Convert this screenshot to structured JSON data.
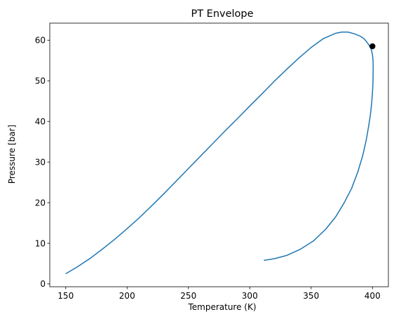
{
  "chart_data": {
    "type": "line",
    "title": "PT Envelope",
    "xlabel": "Temperature (K)",
    "ylabel": "Pressure [bar]",
    "xlim": [
      137,
      413
    ],
    "ylim": [
      -0.7,
      64.2
    ],
    "xticks": [
      150,
      200,
      250,
      300,
      350,
      400
    ],
    "yticks": [
      0,
      10,
      20,
      30,
      40,
      50,
      60
    ],
    "grid": false,
    "series": [
      {
        "color": "#1f77b4",
        "x": [
          150,
          160,
          170,
          180,
          190,
          200,
          210,
          220,
          230,
          240,
          250,
          260,
          270,
          280,
          290,
          300,
          310,
          320,
          330,
          340,
          350,
          360,
          370,
          375,
          380,
          385,
          390,
          393,
          395,
          397,
          399,
          400,
          400.5,
          400.6,
          400.5,
          400.2,
          399.5,
          398.5,
          397,
          395,
          392,
          388,
          383,
          377,
          370,
          362,
          352,
          341,
          330,
          320,
          311.5
        ],
        "y": [
          2.5,
          4.3,
          6.3,
          8.6,
          11.0,
          13.6,
          16.3,
          19.2,
          22.2,
          25.3,
          28.4,
          31.5,
          34.6,
          37.7,
          40.7,
          43.8,
          46.8,
          49.9,
          52.8,
          55.6,
          58.2,
          60.4,
          61.7,
          62.0,
          62.0,
          61.6,
          61.0,
          60.4,
          59.7,
          58.9,
          57.8,
          56.5,
          55.0,
          53.0,
          50.5,
          48.0,
          45.0,
          42.0,
          39.0,
          35.5,
          31.5,
          27.5,
          23.5,
          20.0,
          16.5,
          13.5,
          10.6,
          8.5,
          7.0,
          6.2,
          5.8
        ]
      }
    ],
    "marker": {
      "x": 400,
      "y": 58.5,
      "color": "#000000"
    }
  }
}
